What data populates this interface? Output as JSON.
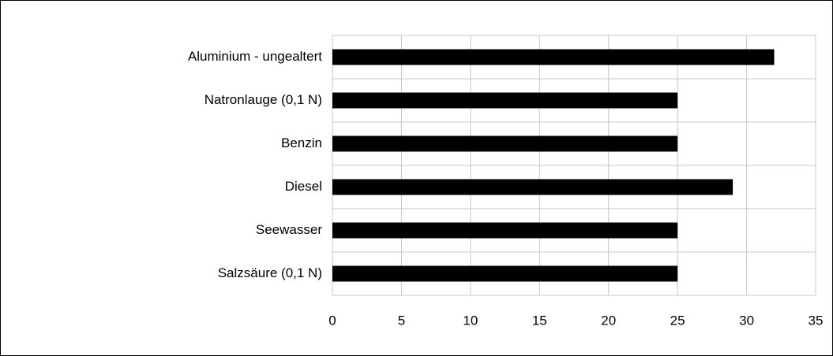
{
  "chart_data": {
    "type": "bar",
    "orientation": "horizontal",
    "categories": [
      "Aluminium - ungealtert",
      "Natronlauge (0,1 N)",
      "Benzin",
      "Diesel",
      "Seewasser",
      "Salzsäure (0,1 N)"
    ],
    "values": [
      32,
      25,
      25,
      29,
      25,
      25
    ],
    "color": "#000000",
    "xlim": [
      0,
      35
    ],
    "xticks": [
      0,
      5,
      10,
      15,
      20,
      25,
      30,
      35
    ],
    "grid": true
  }
}
